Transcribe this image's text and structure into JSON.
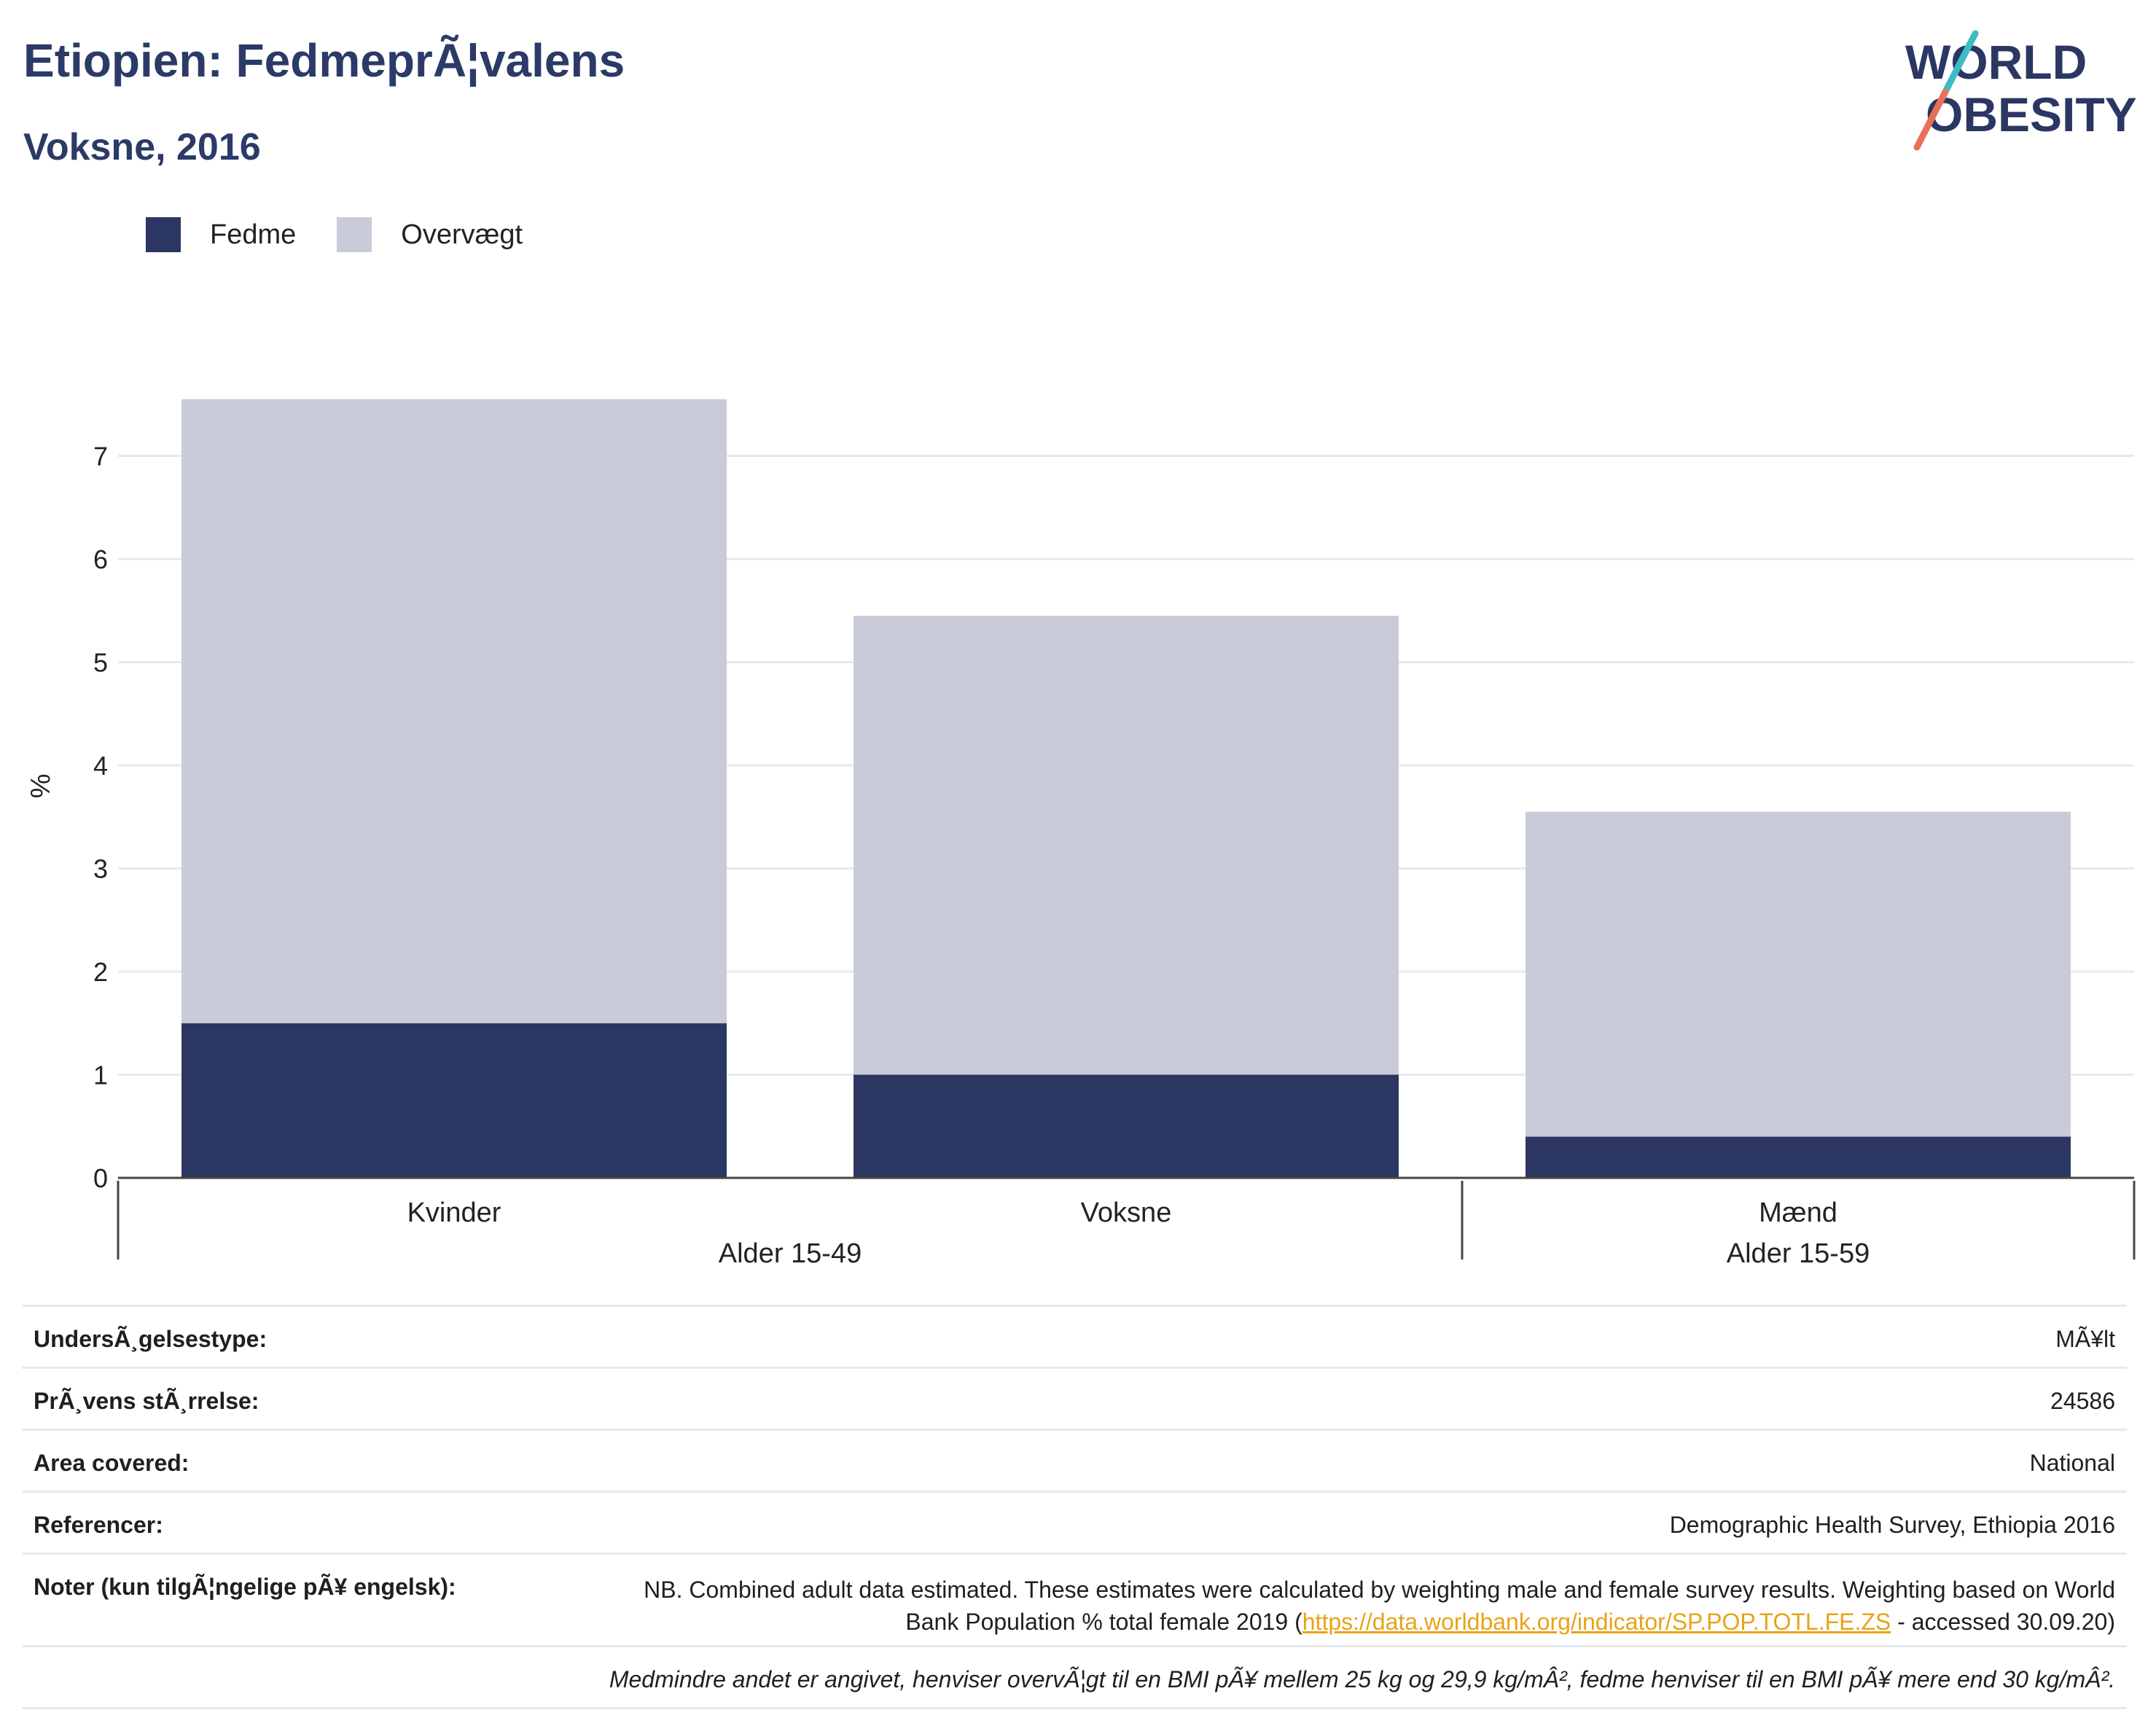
{
  "header": {
    "title": "Etiopien: FedmeprÃ¦valens",
    "subtitle": "Voksne, 2016"
  },
  "logo": {
    "line1": "WORLD",
    "line2": "OBESITY"
  },
  "legend": [
    {
      "label": "Fedme",
      "color": "#2b3663"
    },
    {
      "label": "Overvægt",
      "color": "#c9ccd8"
    }
  ],
  "chart_data": {
    "type": "bar",
    "stacked": true,
    "categories": [
      "Kvinder",
      "Voksne",
      "Mænd"
    ],
    "groups": [
      {
        "label": "Alder 15-49",
        "categories": [
          "Kvinder",
          "Voksne"
        ]
      },
      {
        "label": "Alder 15-59",
        "categories": [
          "Mænd"
        ]
      }
    ],
    "series": [
      {
        "name": "Fedme",
        "values": [
          1.5,
          1.0,
          0.4
        ],
        "color": "#2b3663"
      },
      {
        "name": "Overvægt",
        "values": [
          6.05,
          4.45,
          3.15
        ],
        "color": "#c9ccd8"
      }
    ],
    "ylabel": "%",
    "ylim": [
      0,
      7.5
    ],
    "yticks": [
      0,
      1,
      2,
      3,
      4,
      5,
      6,
      7
    ],
    "grid": true,
    "legend_position": "top-left"
  },
  "info": {
    "survey_type_label": "UndersÃ¸gelsestype:",
    "survey_type_value": "MÃ¥lt",
    "sample_size_label": "PrÃ¸vens stÃ¸rrelse:",
    "sample_size_value": "24586",
    "area_label": "Area covered:",
    "area_value": "National",
    "references_label": "Referencer:",
    "references_value": "Demographic Health Survey, Ethiopia 2016",
    "notes_label": "Noter (kun tilgÃ¦ngelige pÃ¥ engelsk):",
    "notes_text_before": "NB. Combined adult data estimated. These estimates were calculated by weighting male and female survey results. Weighting based on World Bank Population % total female 2019 (",
    "notes_link": "https://data.worldbank.org/indicator/SP.POP.TOTL.FE.ZS",
    "notes_text_after": " - accessed 30.09.20)",
    "footnote": "Medmindre andet er angivet, henviser overvÃ¦gt til en BMI pÃ¥ mellem 25 kg og 29,9 kg/mÂ², fedme henviser til en BMI pÃ¥ mere end 30 kg/mÂ²."
  }
}
